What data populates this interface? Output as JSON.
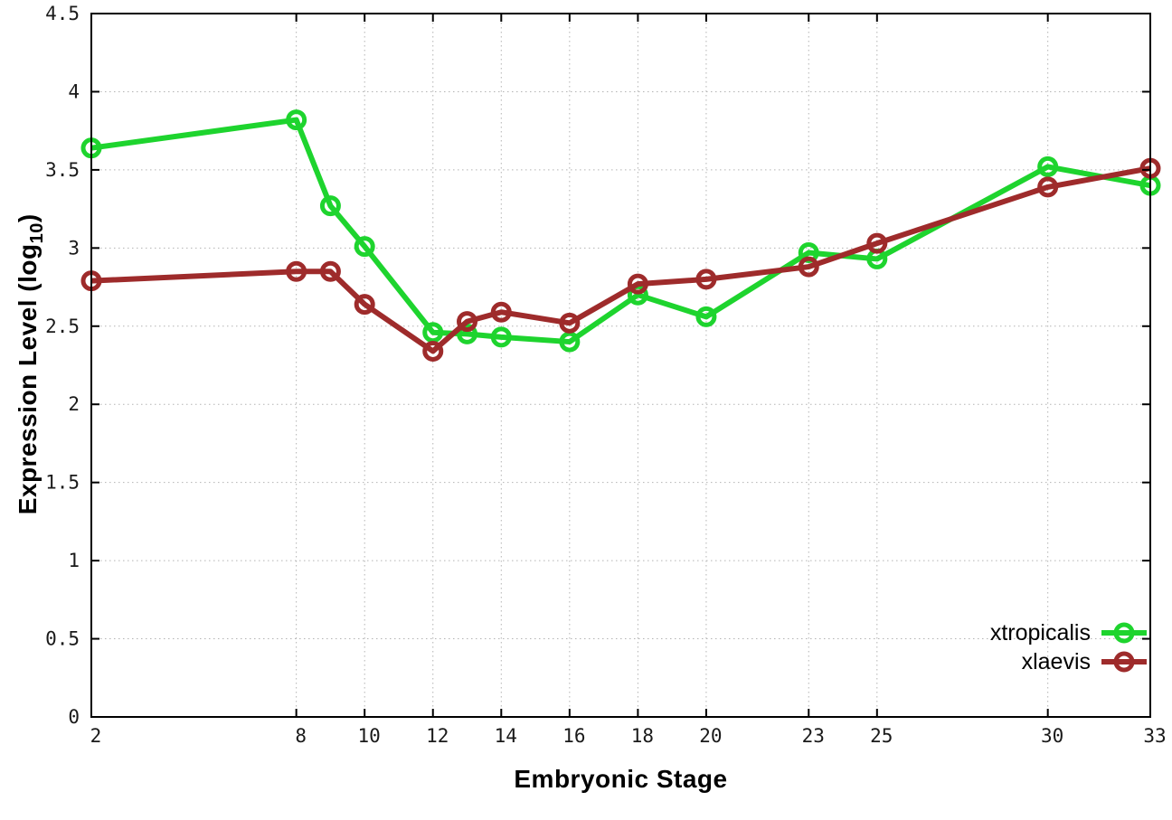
{
  "chart_data": {
    "type": "line",
    "title": "",
    "xlabel": "Embryonic Stage",
    "ylabel": "Expression Level (log10)",
    "ylabel_parts": {
      "main": "Expression Level (log",
      "sub": "10",
      "end": ")"
    },
    "x": [
      2,
      8,
      9,
      10,
      12,
      13,
      14,
      16,
      18,
      20,
      23,
      25,
      30,
      33
    ],
    "series": [
      {
        "name": "xtropicalis",
        "color": "#1ed42e",
        "values": [
          3.64,
          3.82,
          3.27,
          3.01,
          2.46,
          2.45,
          2.43,
          2.4,
          2.7,
          2.56,
          2.97,
          2.93,
          3.52,
          3.4
        ]
      },
      {
        "name": "xlaevis",
        "color": "#9e2b2b",
        "values": [
          2.79,
          2.85,
          2.85,
          2.64,
          2.34,
          2.53,
          2.59,
          2.52,
          2.77,
          2.8,
          2.88,
          3.03,
          3.39,
          3.51
        ]
      }
    ],
    "xticks": {
      "values": [
        2,
        8,
        10,
        12,
        14,
        16,
        18,
        20,
        23,
        25,
        30,
        33
      ],
      "labels": [
        "2",
        "8",
        "10",
        "12",
        "14",
        "16",
        "18",
        "20",
        "23",
        "25",
        "30",
        "33"
      ]
    },
    "yticks": {
      "values": [
        0,
        0.5,
        1,
        1.5,
        2,
        2.5,
        3,
        3.5,
        4,
        4.5
      ],
      "labels": [
        "0",
        "0.5",
        "1",
        "1.5",
        "2",
        "2.5",
        "3",
        "3.5",
        "4",
        "4.5"
      ]
    },
    "xlim": [
      2,
      33
    ],
    "ylim": [
      0,
      4.5
    ],
    "grid": true,
    "legend_position": "bottom-right",
    "colors": {
      "axis": "#000000",
      "grid": "#b3b3b3",
      "background": "#ffffff",
      "tick_text": "#1a1a1a"
    }
  }
}
